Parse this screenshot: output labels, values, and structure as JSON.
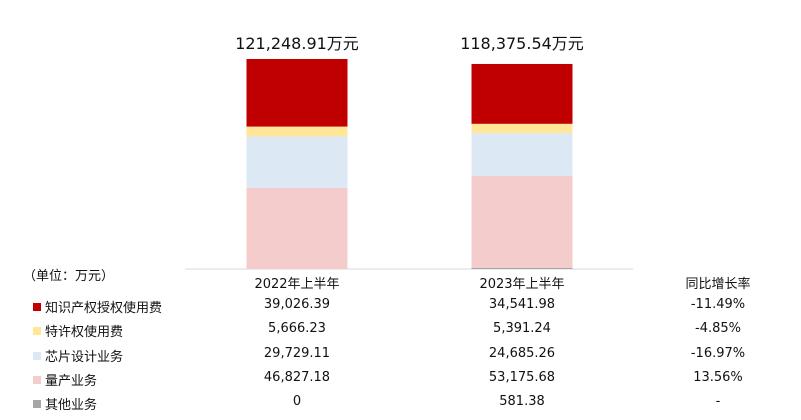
{
  "chart_data": {
    "type": "bar",
    "stacked": true,
    "categories": [
      "2022年上半年",
      "2023年上半年"
    ],
    "totals": [
      "121,248.91万元",
      "118,375.54万元"
    ],
    "unit_label": "（单位：万元）",
    "growth_header": "同比增长率",
    "series": [
      {
        "name": "知识产权授权使用费",
        "color": "#c00000",
        "values": [
          39026.39,
          34541.98
        ],
        "display": [
          "39,026.39",
          "34,541.98"
        ],
        "growth": "-11.49%"
      },
      {
        "name": "特许权使用费",
        "color": "#ffe699",
        "values": [
          5666.23,
          5391.24
        ],
        "display": [
          "5,666.23",
          "5,391.24"
        ],
        "growth": "-4.85%"
      },
      {
        "name": "芯片设计业务",
        "color": "#dde8f5",
        "values": [
          29729.11,
          24685.26
        ],
        "display": [
          "29,729.11",
          "24,685.26"
        ],
        "growth": "-16.97%"
      },
      {
        "name": "量产业务",
        "color": "#f4cccc",
        "values": [
          46827.18,
          53175.68
        ],
        "display": [
          "46,827.18",
          "53,175.68"
        ],
        "growth": "13.56%"
      },
      {
        "name": "其他业务",
        "color": "#a6a6a6",
        "values": [
          0,
          581.38
        ],
        "display": [
          "0",
          "581.38"
        ],
        "growth": "-"
      }
    ],
    "ylim": [
      0,
      121248.91
    ],
    "grid": false
  }
}
